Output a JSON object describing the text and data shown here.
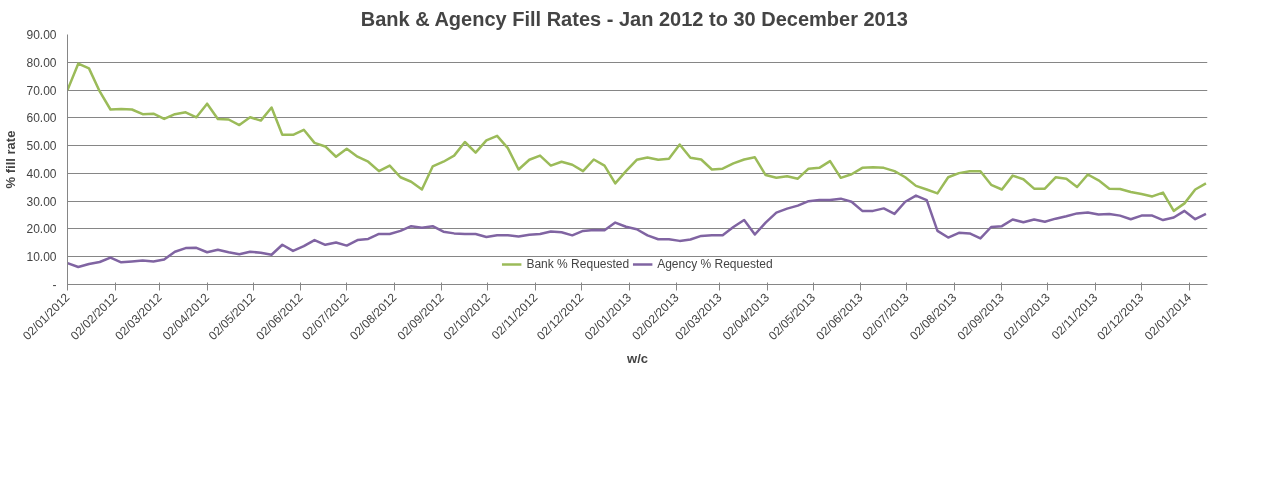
{
  "chart_data": {
    "type": "line",
    "title": "Bank & Agency Fill Rates - Jan 2012 to  30 December 2013",
    "xlabel": "w/c",
    "ylabel": "% fill rate",
    "x": [
      "2012-01-02",
      "2012-01-09",
      "2012-01-16",
      "2012-01-23",
      "2012-01-30",
      "2012-02-06",
      "2012-02-13",
      "2012-02-20",
      "2012-02-27",
      "2012-03-05",
      "2012-03-12",
      "2012-03-19",
      "2012-03-26",
      "2012-04-02",
      "2012-04-09",
      "2012-04-16",
      "2012-04-23",
      "2012-04-30",
      "2012-05-07",
      "2012-05-14",
      "2012-05-21",
      "2012-05-28",
      "2012-06-04",
      "2012-06-11",
      "2012-06-18",
      "2012-06-25",
      "2012-07-02",
      "2012-07-09",
      "2012-07-16",
      "2012-07-23",
      "2012-07-30",
      "2012-08-06",
      "2012-08-13",
      "2012-08-20",
      "2012-08-27",
      "2012-09-03",
      "2012-09-10",
      "2012-09-17",
      "2012-09-24",
      "2012-10-01",
      "2012-10-08",
      "2012-10-15",
      "2012-10-22",
      "2012-10-29",
      "2012-11-05",
      "2012-11-12",
      "2012-11-19",
      "2012-11-26",
      "2012-12-03",
      "2012-12-10",
      "2012-12-17",
      "2012-12-24",
      "2012-12-31",
      "2013-01-07",
      "2013-01-14",
      "2013-01-21",
      "2013-01-28",
      "2013-02-04",
      "2013-02-11",
      "2013-02-18",
      "2013-02-25",
      "2013-03-04",
      "2013-03-11",
      "2013-03-18",
      "2013-03-25",
      "2013-04-01",
      "2013-04-08",
      "2013-04-15",
      "2013-04-22",
      "2013-04-29",
      "2013-05-06",
      "2013-05-13",
      "2013-05-20",
      "2013-05-27",
      "2013-06-03",
      "2013-06-10",
      "2013-06-17",
      "2013-06-24",
      "2013-07-01",
      "2013-07-08",
      "2013-07-15",
      "2013-07-22",
      "2013-07-29",
      "2013-08-05",
      "2013-08-12",
      "2013-08-19",
      "2013-08-26",
      "2013-09-02",
      "2013-09-09",
      "2013-09-16",
      "2013-09-23",
      "2013-09-30",
      "2013-10-07",
      "2013-10-14",
      "2013-10-21",
      "2013-10-28",
      "2013-11-04",
      "2013-11-11",
      "2013-11-18",
      "2013-11-25",
      "2013-12-02",
      "2013-12-09",
      "2013-12-16",
      "2013-12-23",
      "2013-12-30",
      "2014-01-06",
      "2014-01-13"
    ],
    "series": [
      {
        "name": "Bank % Requested",
        "color": "#9bbb59",
        "values": [
          70,
          79.5,
          77.8,
          69.5,
          63,
          63.2,
          63,
          61.3,
          61.5,
          59.6,
          61.3,
          62,
          60.2,
          65.1,
          59.6,
          59.4,
          57.4,
          60.2,
          59,
          63.7,
          53.9,
          53.9,
          55.7,
          51,
          49.7,
          46,
          48.9,
          46,
          44.2,
          40.8,
          42.8,
          38.6,
          37,
          34.2,
          42.5,
          44.2,
          46.4,
          51.3,
          47.5,
          51.9,
          53.5,
          49.1,
          41.4,
          44.9,
          46.4,
          42.8,
          44.2,
          43.1,
          40.8,
          45,
          42.8,
          36.4,
          40.8,
          44.9,
          45.7,
          44.9,
          45.3,
          50.4,
          45.6,
          45,
          41.4,
          41.7,
          43.6,
          45,
          45.8,
          39.4,
          38.4,
          39,
          38.1,
          41.7,
          42,
          44.4,
          38.4,
          39.7,
          42,
          42.2,
          42,
          40.8,
          38.6,
          35.5,
          34.2,
          32.8,
          38.6,
          40.1,
          40.8,
          40.8,
          35.9,
          34.2,
          39.2,
          37.9,
          34.5,
          34.5,
          38.6,
          38.1,
          35.1,
          39.6,
          37.5,
          34.5,
          34.4,
          33.3,
          32.6,
          31.7,
          33.1,
          26.5,
          29.2,
          34.2,
          36.4
        ]
      },
      {
        "name": "Agency % Requested",
        "color": "#8064a2",
        "values": [
          7.7,
          6.3,
          7.4,
          8.1,
          9.7,
          8,
          8.3,
          8.6,
          8.3,
          9,
          11.8,
          13.1,
          13.2,
          11.6,
          12.5,
          11.6,
          10.9,
          11.8,
          11.4,
          10.7,
          14.3,
          12.1,
          13.8,
          16,
          14.3,
          15.1,
          14,
          16,
          16.4,
          18.2,
          18.2,
          19.3,
          21,
          20.4,
          21,
          19,
          18.4,
          18.2,
          18.2,
          17.1,
          17.7,
          17.7,
          17.3,
          17.9,
          18.2,
          19.1,
          18.8,
          17.7,
          19.3,
          19.6,
          19.5,
          22.3,
          20.8,
          19.9,
          17.7,
          16.3,
          16.3,
          15.7,
          16.2,
          17.5,
          17.7,
          17.7,
          20.7,
          23.2,
          18,
          22.3,
          25.9,
          27.3,
          28.4,
          30,
          30.4,
          30.4,
          30.9,
          29.8,
          26.5,
          26.5,
          27.4,
          25.4,
          29.8,
          32,
          30.4,
          19.3,
          16.9,
          18.6,
          18.4,
          16.6,
          20.7,
          21,
          23.4,
          22.4,
          23.4,
          22.6,
          23.7,
          24.6,
          25.6,
          25.9,
          25.2,
          25.4,
          24.8,
          23.5,
          24.8,
          24.8,
          23.2,
          24.1,
          26.5,
          23.5,
          25.4
        ]
      }
    ],
    "xlim": [
      "2012-01-02",
      "2014-01-14"
    ],
    "xticks": [
      {
        "value": "2012-01-02",
        "label": "02/01/2012"
      },
      {
        "value": "2012-02-02",
        "label": "02/02/2012"
      },
      {
        "value": "2012-03-02",
        "label": "02/03/2012"
      },
      {
        "value": "2012-04-02",
        "label": "02/04/2012"
      },
      {
        "value": "2012-05-02",
        "label": "02/05/2012"
      },
      {
        "value": "2012-06-02",
        "label": "02/06/2012"
      },
      {
        "value": "2012-07-02",
        "label": "02/07/2012"
      },
      {
        "value": "2012-08-02",
        "label": "02/08/2012"
      },
      {
        "value": "2012-09-02",
        "label": "02/09/2012"
      },
      {
        "value": "2012-10-02",
        "label": "02/10/2012"
      },
      {
        "value": "2012-11-02",
        "label": "02/11/2012"
      },
      {
        "value": "2012-12-02",
        "label": "02/12/2012"
      },
      {
        "value": "2013-01-02",
        "label": "02/01/2013"
      },
      {
        "value": "2013-02-02",
        "label": "02/02/2013"
      },
      {
        "value": "2013-03-02",
        "label": "02/03/2013"
      },
      {
        "value": "2013-04-02",
        "label": "02/04/2013"
      },
      {
        "value": "2013-05-02",
        "label": "02/05/2013"
      },
      {
        "value": "2013-06-02",
        "label": "02/06/2013"
      },
      {
        "value": "2013-07-02",
        "label": "02/07/2013"
      },
      {
        "value": "2013-08-02",
        "label": "02/08/2013"
      },
      {
        "value": "2013-09-02",
        "label": "02/09/2013"
      },
      {
        "value": "2013-10-02",
        "label": "02/10/2013"
      },
      {
        "value": "2013-11-02",
        "label": "02/11/2013"
      },
      {
        "value": "2013-12-02",
        "label": "02/12/2013"
      },
      {
        "value": "2014-01-02",
        "label": "02/01/2014"
      }
    ],
    "ylim": [
      0,
      90
    ],
    "yticks": [
      {
        "value": 0,
        "label": "-"
      },
      {
        "value": 10,
        "label": "10.00"
      },
      {
        "value": 20,
        "label": "20.00"
      },
      {
        "value": 30,
        "label": "30.00"
      },
      {
        "value": 40,
        "label": "40.00"
      },
      {
        "value": 50,
        "label": "50.00"
      },
      {
        "value": 60,
        "label": "60.00"
      },
      {
        "value": 70,
        "label": "70.00"
      },
      {
        "value": 80,
        "label": "80.00"
      },
      {
        "value": 90,
        "label": "90.00"
      }
    ],
    "grid": "y",
    "legend": "bottom",
    "marker": "none",
    "line_style": "solid"
  }
}
